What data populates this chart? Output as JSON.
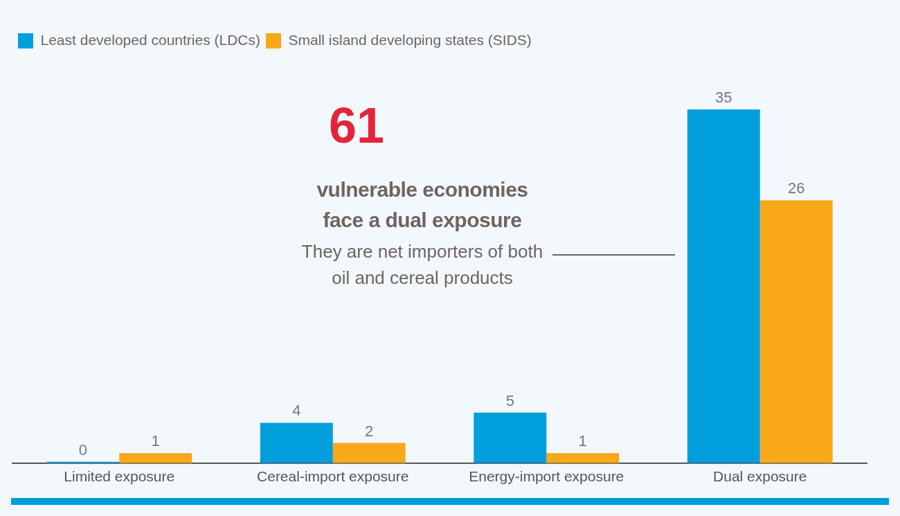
{
  "chart_data": {
    "type": "bar",
    "categories": [
      "Limited exposure",
      "Cereal-import exposure",
      "Energy-import exposure",
      "Dual exposure"
    ],
    "series": [
      {
        "name": "Least developed countries (LDCs)",
        "color": "#009edb",
        "values": [
          0,
          4,
          5,
          35
        ]
      },
      {
        "name": "Small island developing states (SIDS)",
        "color": "#f9a81a",
        "values": [
          1,
          2,
          1,
          26
        ]
      }
    ],
    "data_labels": true,
    "legend": "top left",
    "grid": false,
    "annotations": [
      "61",
      "vulnerable economies\nface a dual exposure",
      "They are net importers of both\noil and cereal products"
    ]
  }
}
